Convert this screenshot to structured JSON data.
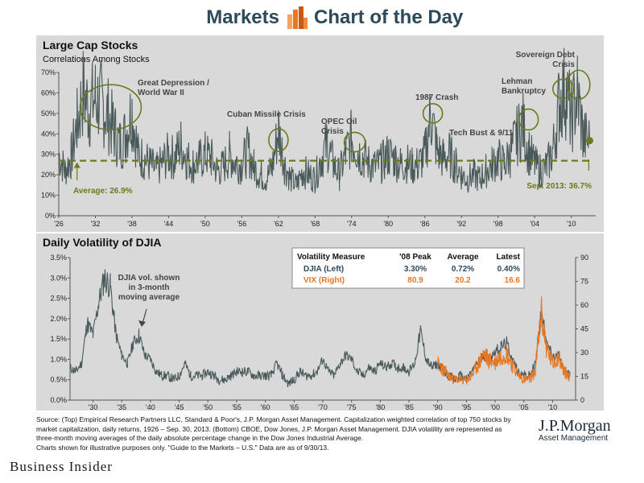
{
  "header": {
    "left_title": "Markets",
    "right_title": "Chart of the Day"
  },
  "colors": {
    "panel_bg": "#d9d9d9",
    "series_gray": "#4a5a5a",
    "avg_line": "#6b7a1e",
    "vix_orange": "#e87722",
    "annotation_olive": "#6b7a1e"
  },
  "chart_data": [
    {
      "type": "line",
      "title": "Large Cap Stocks",
      "subtitle": "Correlations Among Stocks",
      "x_tick_labels": [
        "'26",
        "'32",
        "'38",
        "'44",
        "'50",
        "'56",
        "'62",
        "'68",
        "'74",
        "'80",
        "'86",
        "'92",
        "'98",
        "'04",
        "'10"
      ],
      "x_ticks": [
        1926,
        1932,
        1938,
        1944,
        1950,
        1956,
        1962,
        1968,
        1974,
        1980,
        1986,
        1992,
        1998,
        2004,
        2010
      ],
      "xlim": [
        1926,
        2014
      ],
      "y_tick_labels": [
        "0%",
        "10%",
        "20%",
        "30%",
        "40%",
        "50%",
        "60%",
        "70%"
      ],
      "y_ticks": [
        0,
        10,
        20,
        30,
        40,
        50,
        60,
        70
      ],
      "ylim": [
        0,
        70
      ],
      "series": [
        {
          "x": [
            1926,
            1927,
            1928,
            1929,
            1930,
            1931,
            1932,
            1933,
            1934,
            1935,
            1936,
            1937,
            1938,
            1939,
            1940,
            1941,
            1942,
            1943,
            1944,
            1945,
            1946,
            1947,
            1948,
            1949,
            1950,
            1951,
            1952,
            1953,
            1954,
            1955,
            1956,
            1957,
            1958,
            1959,
            1960,
            1961,
            1962,
            1963,
            1964,
            1965,
            1966,
            1967,
            1968,
            1969,
            1970,
            1971,
            1972,
            1973,
            1974,
            1975,
            1976,
            1977,
            1978,
            1979,
            1980,
            1981,
            1982,
            1983,
            1984,
            1985,
            1986,
            1987,
            1988,
            1989,
            1990,
            1991,
            1992,
            1993,
            1994,
            1995,
            1996,
            1997,
            1998,
            1999,
            2000,
            2001,
            2002,
            2003,
            2004,
            2005,
            2006,
            2007,
            2008,
            2009,
            2010,
            2011,
            2012,
            2013
          ],
          "values": [
            30,
            22,
            28,
            45,
            60,
            52,
            58,
            55,
            50,
            42,
            35,
            40,
            52,
            30,
            28,
            25,
            22,
            26,
            30,
            28,
            35,
            28,
            25,
            27,
            30,
            28,
            22,
            24,
            30,
            26,
            25,
            32,
            24,
            20,
            18,
            24,
            42,
            25,
            18,
            15,
            22,
            20,
            18,
            28,
            35,
            25,
            20,
            30,
            38,
            32,
            28,
            25,
            24,
            26,
            30,
            28,
            25,
            26,
            24,
            25,
            30,
            50,
            32,
            28,
            30,
            25,
            20,
            18,
            20,
            18,
            22,
            25,
            28,
            25,
            30,
            38,
            45,
            32,
            25,
            22,
            24,
            32,
            55,
            62,
            48,
            60,
            38,
            36.7
          ]
        }
      ],
      "average": 26.9,
      "average_label": "Average: 26.9%",
      "latest_label": "Sep. 2013: 36.7%",
      "annotations": [
        {
          "text": "Great Depression / World War II",
          "x": 1934.5,
          "y": 53
        },
        {
          "text": "Cuban Missile Crisis",
          "x": 1962,
          "y": 37
        },
        {
          "text": "OPEC Oil Crisis",
          "x": 1974.5,
          "y": 36
        },
        {
          "text": "1987 Crash",
          "x": 1987.3,
          "y": 50
        },
        {
          "text": "Tech Bust & 9/11",
          "x": 2003,
          "y": 47
        },
        {
          "text": "Lehman Bankruptcy",
          "x": 2008.7,
          "y": 62
        },
        {
          "text": "Sovereign Debt Crisis",
          "x": 2011.2,
          "y": 64
        }
      ]
    },
    {
      "type": "line",
      "title": "Daily Volatility of DJIA",
      "x_tick_labels": [
        "'30",
        "'35",
        "'40",
        "'45",
        "'50",
        "'55",
        "'60",
        "'65",
        "'70",
        "'75",
        "'80",
        "'85",
        "'90",
        "'95",
        "'00",
        "'05",
        "'10"
      ],
      "x_ticks": [
        1930,
        1935,
        1940,
        1945,
        1950,
        1955,
        1960,
        1965,
        1970,
        1975,
        1980,
        1985,
        1990,
        1995,
        2000,
        2005,
        2010
      ],
      "xlim": [
        1926,
        2014
      ],
      "y_left_tick_labels": [
        "0.0%",
        "0.5%",
        "1.0%",
        "1.5%",
        "2.0%",
        "2.5%",
        "3.0%",
        "3.5%"
      ],
      "y_left_ticks": [
        0,
        0.5,
        1.0,
        1.5,
        2.0,
        2.5,
        3.0,
        3.5
      ],
      "ylim_left": [
        0,
        3.5
      ],
      "y_right_tick_labels": [
        "0",
        "15",
        "30",
        "45",
        "60",
        "75",
        "90"
      ],
      "y_right_ticks": [
        0,
        15,
        30,
        45,
        60,
        75,
        90
      ],
      "ylim_right": [
        0,
        90
      ],
      "djia_note": "DJIA vol. shown in 3-month moving average",
      "series": [
        {
          "name": "DJIA (Left)",
          "x": [
            1926,
            1927,
            1928,
            1929,
            1930,
            1931,
            1932,
            1933,
            1934,
            1935,
            1936,
            1937,
            1938,
            1939,
            1940,
            1941,
            1942,
            1943,
            1944,
            1945,
            1946,
            1947,
            1948,
            1949,
            1950,
            1951,
            1952,
            1953,
            1954,
            1955,
            1956,
            1957,
            1958,
            1959,
            1960,
            1961,
            1962,
            1963,
            1964,
            1965,
            1966,
            1967,
            1968,
            1969,
            1970,
            1971,
            1972,
            1973,
            1974,
            1975,
            1976,
            1977,
            1978,
            1979,
            1980,
            1981,
            1982,
            1983,
            1984,
            1985,
            1986,
            1987,
            1988,
            1989,
            1990,
            1991,
            1992,
            1993,
            1994,
            1995,
            1996,
            1997,
            1998,
            1999,
            2000,
            2001,
            2002,
            2003,
            2004,
            2005,
            2006,
            2007,
            2008,
            2009,
            2010,
            2011,
            2012,
            2013
          ],
          "values": [
            0.8,
            0.7,
            0.9,
            1.9,
            1.6,
            2.4,
            3.0,
            2.8,
            1.6,
            1.1,
            0.9,
            1.4,
            1.6,
            1.1,
            1.0,
            0.7,
            0.6,
            0.6,
            0.5,
            0.6,
            0.9,
            0.6,
            0.6,
            0.6,
            0.7,
            0.6,
            0.5,
            0.5,
            0.6,
            0.7,
            0.7,
            0.7,
            0.6,
            0.6,
            0.6,
            0.6,
            0.9,
            0.6,
            0.4,
            0.5,
            0.7,
            0.6,
            0.6,
            0.7,
            1.0,
            0.7,
            0.6,
            0.9,
            1.1,
            1.0,
            0.7,
            0.6,
            0.8,
            0.7,
            0.9,
            0.8,
            0.9,
            0.8,
            0.8,
            0.7,
            0.9,
            1.7,
            1.0,
            0.8,
            0.9,
            0.7,
            0.6,
            0.5,
            0.6,
            0.5,
            0.7,
            0.9,
            1.1,
            1.0,
            1.2,
            1.3,
            1.4,
            1.0,
            0.7,
            0.6,
            0.6,
            0.9,
            2.1,
            1.5,
            1.0,
            1.1,
            0.7,
            0.6
          ]
        },
        {
          "name": "VIX (Right)",
          "x": [
            1990,
            1991,
            1992,
            1993,
            1994,
            1995,
            1996,
            1997,
            1998,
            1999,
            2000,
            2001,
            2002,
            2003,
            2004,
            2005,
            2006,
            2007,
            2008,
            2009,
            2010,
            2011,
            2012,
            2013
          ],
          "values": [
            23,
            19,
            15,
            13,
            13,
            12,
            16,
            22,
            29,
            25,
            24,
            28,
            30,
            22,
            16,
            13,
            13,
            18,
            55,
            32,
            23,
            28,
            18,
            15
          ]
        }
      ],
      "table": {
        "headers": [
          "Volatility Measure",
          "'08 Peak",
          "Average",
          "Latest"
        ],
        "rows": [
          [
            "DJIA (Left)",
            "3.30%",
            "0.72%",
            "0.40%"
          ],
          [
            "VIX (Right)",
            "80.9",
            "20.2",
            "16.6"
          ]
        ]
      }
    }
  ],
  "source_text": "Source: (Top) Empirical Research Partners LLC, Standard & Poor's, J.P. Morgan Asset Management. Capitalization weighted correlation of top 750 stocks by market capitalization, daily returns, 1926 – Sep. 30, 2013. (Bottom) CBOE, Dow Jones, J.P. Morgan Asset Management. DJIA volatility are represented as three-month moving averages of the daily absolute percentage change in the Dow Jones Industrial Average.",
  "source_note": "Charts shown for illustrative purposes only. \"Guide to the Markets – U.S.\" Data are as of 9/30/13.",
  "jpm": {
    "name": "J.P.Morgan",
    "sub": "Asset Management"
  },
  "publisher": "Business Insider"
}
